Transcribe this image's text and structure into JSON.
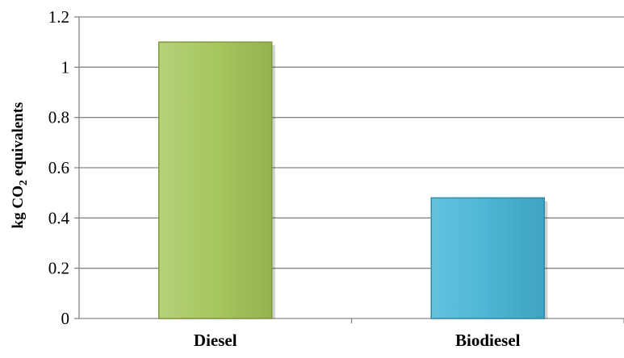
{
  "chart_data": {
    "type": "bar",
    "categories": [
      "Diesel",
      "Biodiesel"
    ],
    "values": [
      1.1,
      0.48
    ],
    "ylabel": {
      "main": "kg CO",
      "subscript": "2",
      "rest": " equivalents"
    },
    "xlabel": "",
    "ylim": [
      0,
      1.2
    ],
    "yticks": [
      "0",
      "0.2",
      "0.4",
      "0.6",
      "0.8",
      "1",
      "1.2"
    ],
    "grid": true,
    "legend": "none",
    "colors": {
      "bars": [
        "#a6c65e",
        "#4db5d3"
      ],
      "bar_edges": [
        "#7e9a3c",
        "#2f8aa7"
      ],
      "gridline": "#868686",
      "axis": "#868686"
    }
  }
}
